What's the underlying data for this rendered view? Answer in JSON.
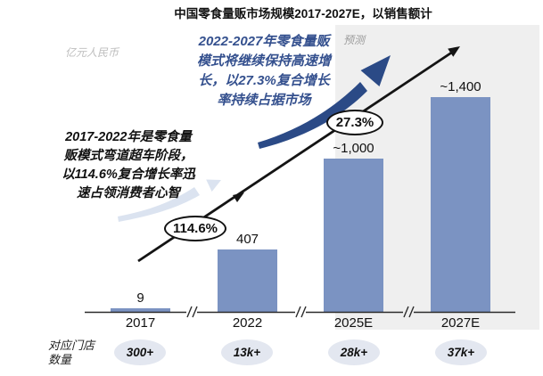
{
  "title": "中国零食量贩市场规模2017-2027E，以销售额计",
  "colors": {
    "bar_fill": "#7b93c2",
    "accent_blue": "#34508e",
    "arrow_dark": "#2b4a86",
    "arrow_light": "#dbe3f0",
    "forecast_bg": "#efefef",
    "oval_bg": "#e3e7f0"
  },
  "chart_data": {
    "type": "bar",
    "title": "中国零食量贩市场规模2017-2027E，以销售额计",
    "unit_label": "亿元人民币",
    "categories": [
      "2017",
      "2022",
      "2025E",
      "2027E"
    ],
    "values": [
      9,
      407,
      1000,
      1400
    ],
    "value_labels": [
      "9",
      "407",
      "~1,000",
      "~1,400"
    ],
    "ylim": [
      0,
      1500
    ],
    "grid": false,
    "x_axis_breaks_between": [
      [
        "2017",
        "2022"
      ],
      [
        "2022",
        "2025E"
      ],
      [
        "2025E",
        "2027E"
      ]
    ],
    "forecast": {
      "label": "预测",
      "applies_to": [
        "2025E",
        "2027E"
      ]
    },
    "growth_badges": [
      "114.6%",
      "27.3%"
    ],
    "store_counts": {
      "row_label": "对应门店数量",
      "values": [
        "300+",
        "13k+",
        "28k+",
        "37k+"
      ]
    }
  },
  "annotations": {
    "past": {
      "lines": [
        "2017-2022年是零食量",
        "贩模式弯道超车阶段，",
        "以114.6%复合增长率迅",
        "速占领消费者心智"
      ]
    },
    "future": {
      "lines": [
        "2022-2027年零食量贩",
        "模式将继续保持高速增",
        "长，以27.3%复合增长",
        "率持续占据市场"
      ]
    }
  }
}
